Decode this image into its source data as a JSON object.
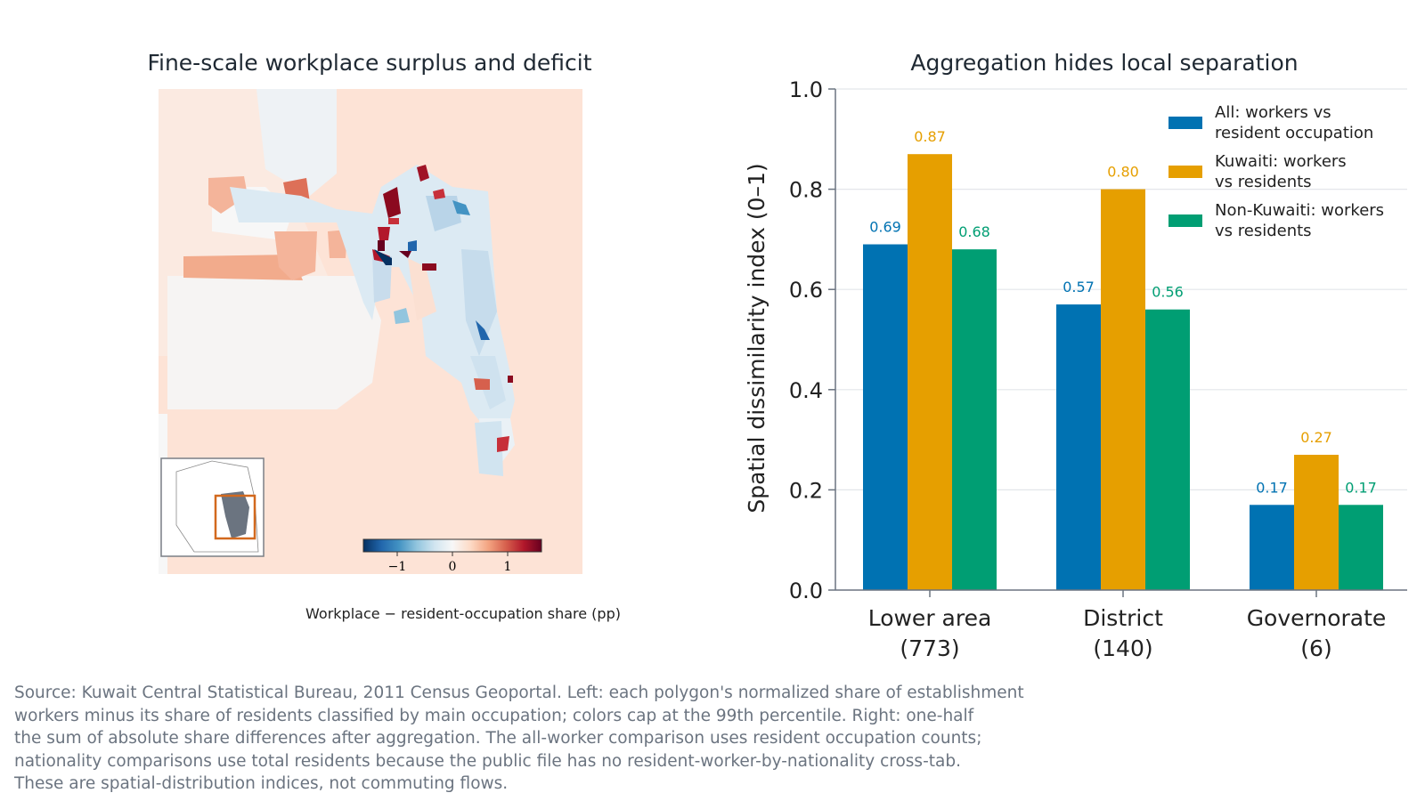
{
  "left_panel": {
    "title": "Fine-scale workplace surplus and deficit",
    "colorbar": {
      "ticks": [
        "−1",
        "0",
        "1"
      ],
      "label": "Workplace − resident-occupation share (pp)",
      "colormap": [
        "#053061",
        "#2166ac",
        "#4393c3",
        "#92c5de",
        "#d1e5f0",
        "#f7f7f7",
        "#fddbc7",
        "#f4a582",
        "#d6604d",
        "#b2182b",
        "#67001f"
      ]
    },
    "inset_highlight_color": "#d2691e"
  },
  "chart_data": {
    "type": "bar",
    "title": "Aggregation hides local separation",
    "ylabel": "Spatial dissimilarity index (0–1)",
    "xlabel": "",
    "ylim": [
      0,
      1.0
    ],
    "yticks": [
      "0.0",
      "0.2",
      "0.4",
      "0.6",
      "0.8",
      "1.0"
    ],
    "grid": "horizontal",
    "legend_position": "top-right",
    "categories": [
      {
        "line1": "Lower area",
        "line2": "(773)"
      },
      {
        "line1": "District",
        "line2": "(140)"
      },
      {
        "line1": "Governorate",
        "line2": "(6)"
      }
    ],
    "series": [
      {
        "name_line1": "All: workers vs",
        "name_line2": "resident occupation",
        "color": "#0072b2",
        "values": [
          0.69,
          0.57,
          0.17
        ],
        "labels": [
          "0.69",
          "0.57",
          "0.17"
        ]
      },
      {
        "name_line1": "Kuwaiti: workers",
        "name_line2": "vs residents",
        "color": "#e69f00",
        "values": [
          0.87,
          0.8,
          0.27
        ],
        "labels": [
          "0.87",
          "0.80",
          "0.27"
        ]
      },
      {
        "name_line1": "Non-Kuwaiti: workers",
        "name_line2": "vs residents",
        "color": "#009e73",
        "values": [
          0.68,
          0.56,
          0.17
        ],
        "labels": [
          "0.68",
          "0.56",
          "0.17"
        ]
      }
    ]
  },
  "source_note": [
    "Source: Kuwait Central Statistical Bureau, 2011 Census Geoportal. Left: each polygon's normalized share of establishment",
    "workers minus its share of residents classified by main occupation; colors cap at the 99th percentile. Right: one-half",
    "the sum of absolute share differences after aggregation. The all-worker comparison uses resident occupation counts;",
    "nationality comparisons use total residents because the public file has no resident-worker-by-nationality cross-tab.",
    "These are spatial-distribution indices, not commuting flows."
  ]
}
